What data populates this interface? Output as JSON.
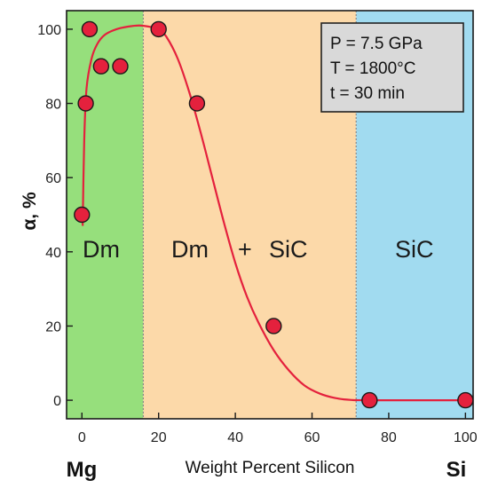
{
  "chart_data": {
    "type": "scatter",
    "xlabel": "Weight Percent Silicon",
    "ylabel": "α, %",
    "xlim": [
      -4,
      102
    ],
    "ylim": [
      -5,
      105
    ],
    "x_ticks": [
      "0",
      "20",
      "40",
      "60",
      "80",
      "100"
    ],
    "y_ticks": [
      "0",
      "20",
      "40",
      "60",
      "80",
      "100"
    ],
    "x_end_labels": {
      "left": "Mg",
      "right": "Si"
    },
    "regions": [
      {
        "label": "Dm",
        "x_from": -4,
        "x_to": 16,
        "color": "#96df7c"
      },
      {
        "label_parts": [
          "Dm",
          "+",
          "SiC"
        ],
        "x_from": 16,
        "x_to": 71.5,
        "color": "#fcd9a9"
      },
      {
        "label": "SiC",
        "x_from": 71.5,
        "x_to": 102,
        "color": "#a1dbf0"
      }
    ],
    "info_box": [
      "P = 7.5 GPa",
      "T = 1800°C",
      "t = 30 min"
    ],
    "series": [
      {
        "marker_color": "#e4213d",
        "x": [
          0,
          1,
          2,
          5,
          10,
          20,
          30,
          50,
          75,
          100
        ],
        "y": [
          50,
          80,
          100,
          90,
          90,
          100,
          80,
          20,
          0,
          0
        ]
      }
    ],
    "fit_curve": {
      "color": "#e4213d",
      "x": [
        0.2,
        0.6,
        1.2,
        2.5,
        4,
        6,
        9,
        12,
        15,
        18,
        20,
        22,
        25,
        28,
        31,
        34,
        37,
        40,
        43,
        46,
        50,
        54,
        58,
        62,
        66,
        70,
        75,
        100
      ],
      "y": [
        47,
        70,
        84,
        92,
        96,
        98.5,
        100,
        100.7,
        101,
        100.6,
        100,
        98,
        92,
        83,
        72,
        60,
        48,
        37,
        28,
        21,
        13.5,
        8,
        4,
        1.8,
        0.6,
        0.1,
        0,
        0
      ]
    }
  }
}
